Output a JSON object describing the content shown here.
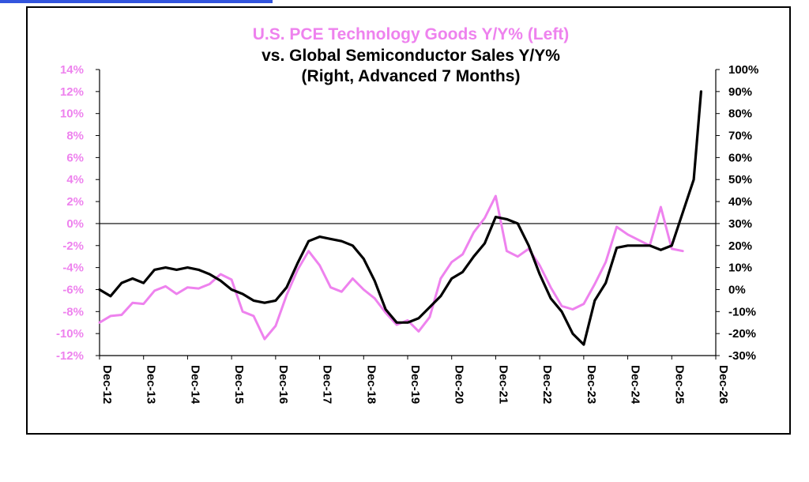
{
  "colors": {
    "pce": "#ee82ee",
    "semis": "#000000",
    "frame": "#000000",
    "link": "#3355dd"
  },
  "chart_data": {
    "type": "line",
    "title_lines": [
      {
        "text": "U.S. PCE Technology Goods Y/Y% (Left)",
        "color": "#ee82ee"
      },
      {
        "text": "vs. Global Semiconductor Sales Y/Y%",
        "color": "#000000"
      },
      {
        "text": "(Right, Advanced 7 Months)",
        "color": "#000000"
      }
    ],
    "y_left": {
      "min": -12,
      "max": 14,
      "ticks": [
        "14%",
        "12%",
        "10%",
        "8%",
        "6%",
        "4%",
        "2%",
        "0%",
        "-2%",
        "-4%",
        "-6%",
        "-8%",
        "-10%",
        "-12%"
      ]
    },
    "y_right": {
      "min": -30,
      "max": 100,
      "ticks": [
        "100%",
        "90%",
        "80%",
        "70%",
        "60%",
        "50%",
        "40%",
        "30%",
        "20%",
        "10%",
        "0%",
        "-10%",
        "-20%",
        "-30%"
      ]
    },
    "x_ticks": [
      "Dec-12",
      "Dec-13",
      "Dec-14",
      "Dec-15",
      "Dec-16",
      "Dec-17",
      "Dec-18",
      "Dec-19",
      "Dec-20",
      "Dec-21",
      "Dec-22",
      "Dec-23",
      "Dec-24",
      "Dec-25",
      "Dec-26"
    ],
    "x_range": [
      "Dec-12",
      "Dec-26"
    ],
    "zero_line": true,
    "grid": false,
    "series": [
      {
        "name": "U.S. PCE Technology Goods Y/Y%",
        "axis": "left",
        "color": "#ee82ee",
        "x": [
          "Dec-12",
          "Mar-13",
          "Jun-13",
          "Sep-13",
          "Dec-13",
          "Mar-14",
          "Jun-14",
          "Sep-14",
          "Dec-14",
          "Mar-15",
          "Jun-15",
          "Sep-15",
          "Dec-15",
          "Mar-16",
          "Jun-16",
          "Sep-16",
          "Dec-16",
          "Mar-17",
          "Jun-17",
          "Sep-17",
          "Dec-17",
          "Mar-18",
          "Jun-18",
          "Sep-18",
          "Dec-18",
          "Mar-19",
          "Jun-19",
          "Sep-19",
          "Dec-19",
          "Mar-20",
          "Jun-20",
          "Sep-20",
          "Dec-20",
          "Mar-21",
          "Jun-21",
          "Sep-21",
          "Dec-21",
          "Mar-22",
          "Jun-22",
          "Sep-22",
          "Dec-22",
          "Mar-23",
          "Jun-23",
          "Sep-23",
          "Dec-23",
          "Mar-24",
          "Jun-24",
          "Sep-24",
          "Dec-24",
          "Mar-25",
          "Jun-25",
          "Sep-25",
          "Dec-25",
          "Mar-26"
        ],
        "y": [
          -9.0,
          -8.4,
          -8.3,
          -7.2,
          -7.3,
          -6.1,
          -5.7,
          -6.4,
          -5.8,
          -5.9,
          -5.5,
          -4.6,
          -5.1,
          -8.0,
          -8.4,
          -10.5,
          -9.3,
          -6.5,
          -4.2,
          -2.5,
          -3.8,
          -5.8,
          -6.2,
          -5.0,
          -6.0,
          -6.8,
          -8.1,
          -9.2,
          -8.8,
          -9.8,
          -8.5,
          -5.0,
          -3.5,
          -2.8,
          -0.8,
          0.5,
          2.5,
          -2.5,
          -3.0,
          -2.3,
          -3.8,
          -5.8,
          -7.5,
          -7.8,
          -7.3,
          -5.5,
          -3.5,
          -0.3,
          -1.0,
          -1.5,
          -2.0,
          1.5,
          -2.3,
          -2.5
        ]
      },
      {
        "name": "Global Semiconductor Sales Y/Y% (Advanced 7 Months)",
        "axis": "right",
        "color": "#000000",
        "x": [
          "Dec-12",
          "Mar-13",
          "Jun-13",
          "Sep-13",
          "Dec-13",
          "Mar-14",
          "Jun-14",
          "Sep-14",
          "Dec-14",
          "Mar-15",
          "Jun-15",
          "Sep-15",
          "Dec-15",
          "Mar-16",
          "Jun-16",
          "Sep-16",
          "Dec-16",
          "Mar-17",
          "Jun-17",
          "Sep-17",
          "Dec-17",
          "Mar-18",
          "Jun-18",
          "Sep-18",
          "Dec-18",
          "Mar-19",
          "Jun-19",
          "Sep-19",
          "Dec-19",
          "Mar-20",
          "Jun-20",
          "Sep-20",
          "Dec-20",
          "Mar-21",
          "Jun-21",
          "Sep-21",
          "Dec-21",
          "Mar-22",
          "Jun-22",
          "Sep-22",
          "Dec-22",
          "Mar-23",
          "Jun-23",
          "Sep-23",
          "Dec-23",
          "Mar-24",
          "Jun-24",
          "Sep-24",
          "Dec-24",
          "Mar-25",
          "Jun-25",
          "Sep-25",
          "Dec-25",
          "Mar-26",
          "Jun-26",
          "Aug-26"
        ],
        "y": [
          0,
          -3,
          3,
          5,
          3,
          9,
          10,
          9,
          10,
          9,
          7,
          4,
          0,
          -2,
          -5,
          -6,
          -5,
          1,
          12,
          22,
          24,
          23,
          22,
          20,
          14,
          4,
          -9,
          -15,
          -15,
          -13,
          -8,
          -3,
          5,
          8,
          15,
          21,
          33,
          32,
          30,
          20,
          7,
          -4,
          -10,
          -20,
          -25,
          -5,
          3,
          19,
          20,
          20,
          20,
          18,
          20,
          35,
          50,
          90
        ]
      }
    ]
  }
}
